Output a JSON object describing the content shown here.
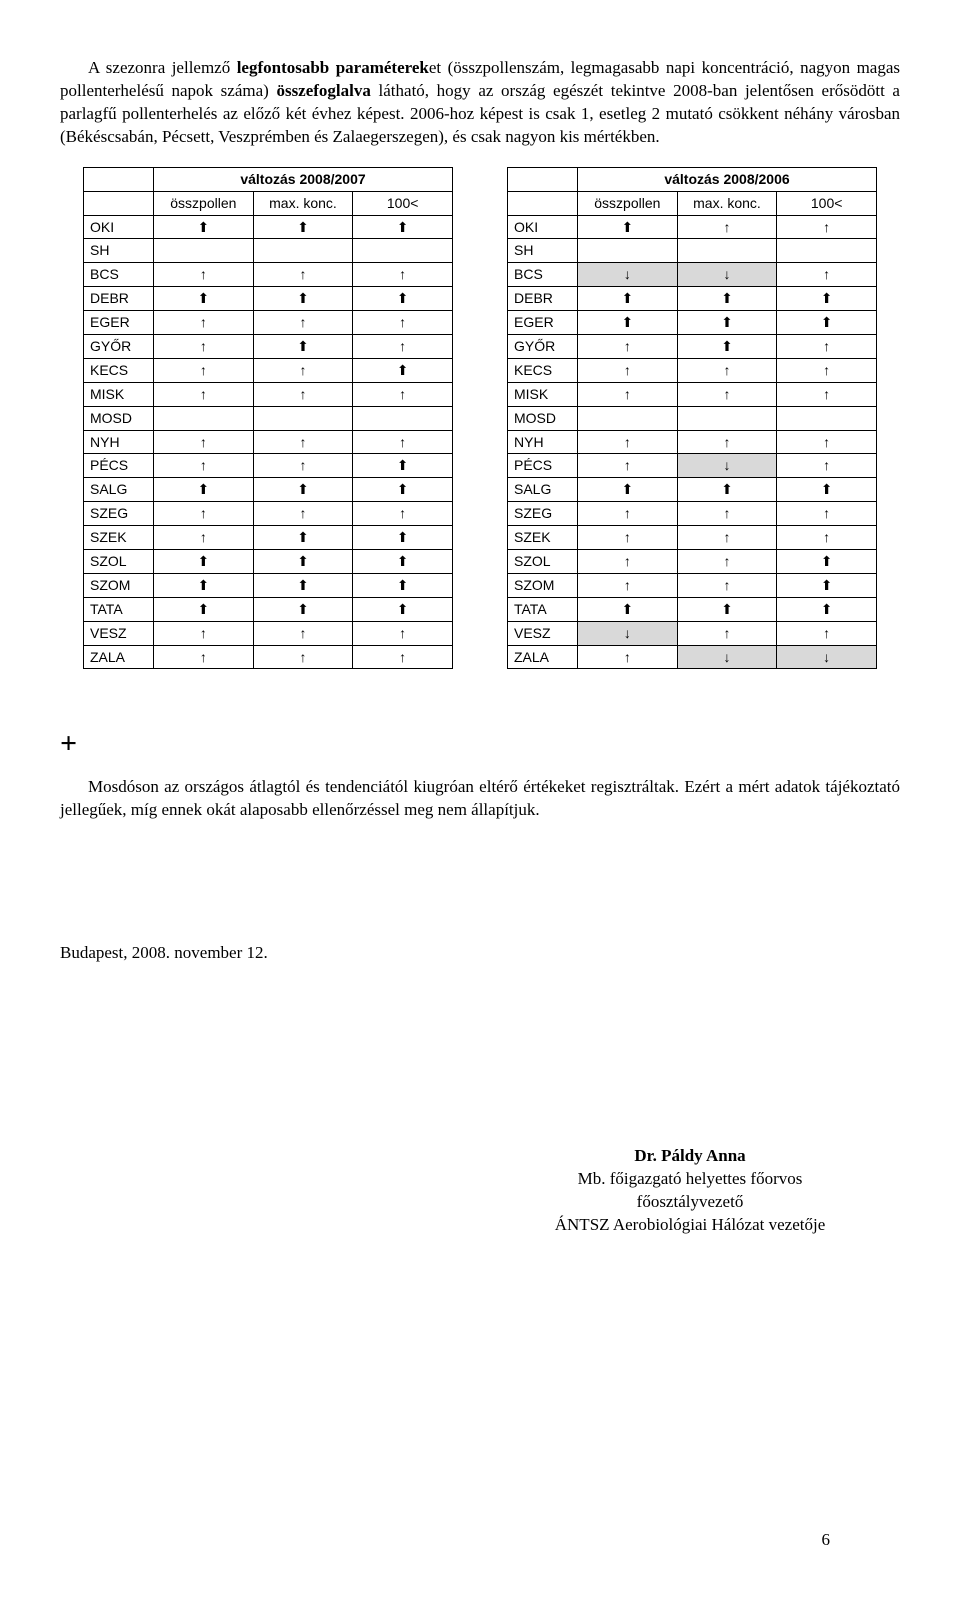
{
  "paragraph1_html": "A szezonra jellemző <b>legfontosabb paraméterek</b>et (összpollenszám, legmagasabb napi koncentráció, nagyon magas pollenterhelésű napok száma) <b>összefoglalva</b> látható, hogy az ország egészét tekintve 2008-ban jelentősen erősödött a parlagfű pollenterhelés az előző két évhez képest. 2006-hoz képest is csak 1, esetleg 2 mutató csökkent néhány városban (Békéscsabán, Pécsett, Veszprémben és Zalaegerszegen), és csak nagyon kis mértékben.",
  "plus": "+",
  "paragraph2": "Mosdóson az országos átlagtól és tendenciától kiugróan eltérő értékeket regisztráltak. Ezért a mért adatok tájékoztató jellegűek, míg ennek okát alaposabb ellenőrzéssel meg nem állapítjuk.",
  "date_line": "Budapest, 2008. november 12.",
  "signature": {
    "name": "Dr. Páldy Anna",
    "line1": "Mb. főigazgató helyettes főorvos",
    "line2": "főosztályvezető",
    "line3": "ÁNTSZ Aerobiológiai Hálózat vezetője"
  },
  "page_number": "6",
  "arrows": {
    "up_bold": "⬆",
    "up_thin": "↑",
    "down_thin": "↓"
  },
  "columns": [
    "összpollen",
    "max. konc.",
    "100<"
  ],
  "cities": [
    "OKI",
    "SH",
    "BCS",
    "DEBR",
    "EGER",
    "GYŐR",
    "KECS",
    "MISK",
    "MOSD",
    "NYH",
    "PÉCS",
    "SALG",
    "SZEG",
    "SZEK",
    "SZOL",
    "SZOM",
    "TATA",
    "VESZ",
    "ZALA"
  ],
  "table_left": {
    "title": "változás 2008/2007",
    "rows": [
      [
        "B",
        "B",
        "B"
      ],
      [
        "",
        "",
        ""
      ],
      [
        "T",
        "T",
        "T"
      ],
      [
        "B",
        "B",
        "B"
      ],
      [
        "T",
        "T",
        "T"
      ],
      [
        "T",
        "B",
        "T"
      ],
      [
        "T",
        "T",
        "B"
      ],
      [
        "T",
        "T",
        "T"
      ],
      [
        "",
        "",
        ""
      ],
      [
        "T",
        "T",
        "T"
      ],
      [
        "T",
        "T",
        "B"
      ],
      [
        "B",
        "B",
        "B"
      ],
      [
        "T",
        "T",
        "T"
      ],
      [
        "T",
        "B",
        "B"
      ],
      [
        "B",
        "B",
        "B"
      ],
      [
        "B",
        "B",
        "B"
      ],
      [
        "B",
        "B",
        "B"
      ],
      [
        "T",
        "T",
        "T"
      ],
      [
        "T",
        "T",
        "T"
      ]
    ]
  },
  "table_right": {
    "title": "változás 2008/2006",
    "rows": [
      [
        "B",
        "T",
        "T"
      ],
      [
        "",
        "",
        ""
      ],
      [
        "D",
        "D",
        "T"
      ],
      [
        "B",
        "B",
        "B"
      ],
      [
        "B",
        "B",
        "B"
      ],
      [
        "T",
        "B",
        "T"
      ],
      [
        "T",
        "T",
        "T"
      ],
      [
        "T",
        "T",
        "T"
      ],
      [
        "",
        "",
        ""
      ],
      [
        "T",
        "T",
        "T"
      ],
      [
        "T",
        "D",
        "T"
      ],
      [
        "B",
        "B",
        "B"
      ],
      [
        "T",
        "T",
        "T"
      ],
      [
        "T",
        "T",
        "T"
      ],
      [
        "T",
        "T",
        "B"
      ],
      [
        "T",
        "T",
        "B"
      ],
      [
        "B",
        "B",
        "B"
      ],
      [
        "D",
        "T",
        "T"
      ],
      [
        "T",
        "D",
        "D"
      ]
    ]
  }
}
